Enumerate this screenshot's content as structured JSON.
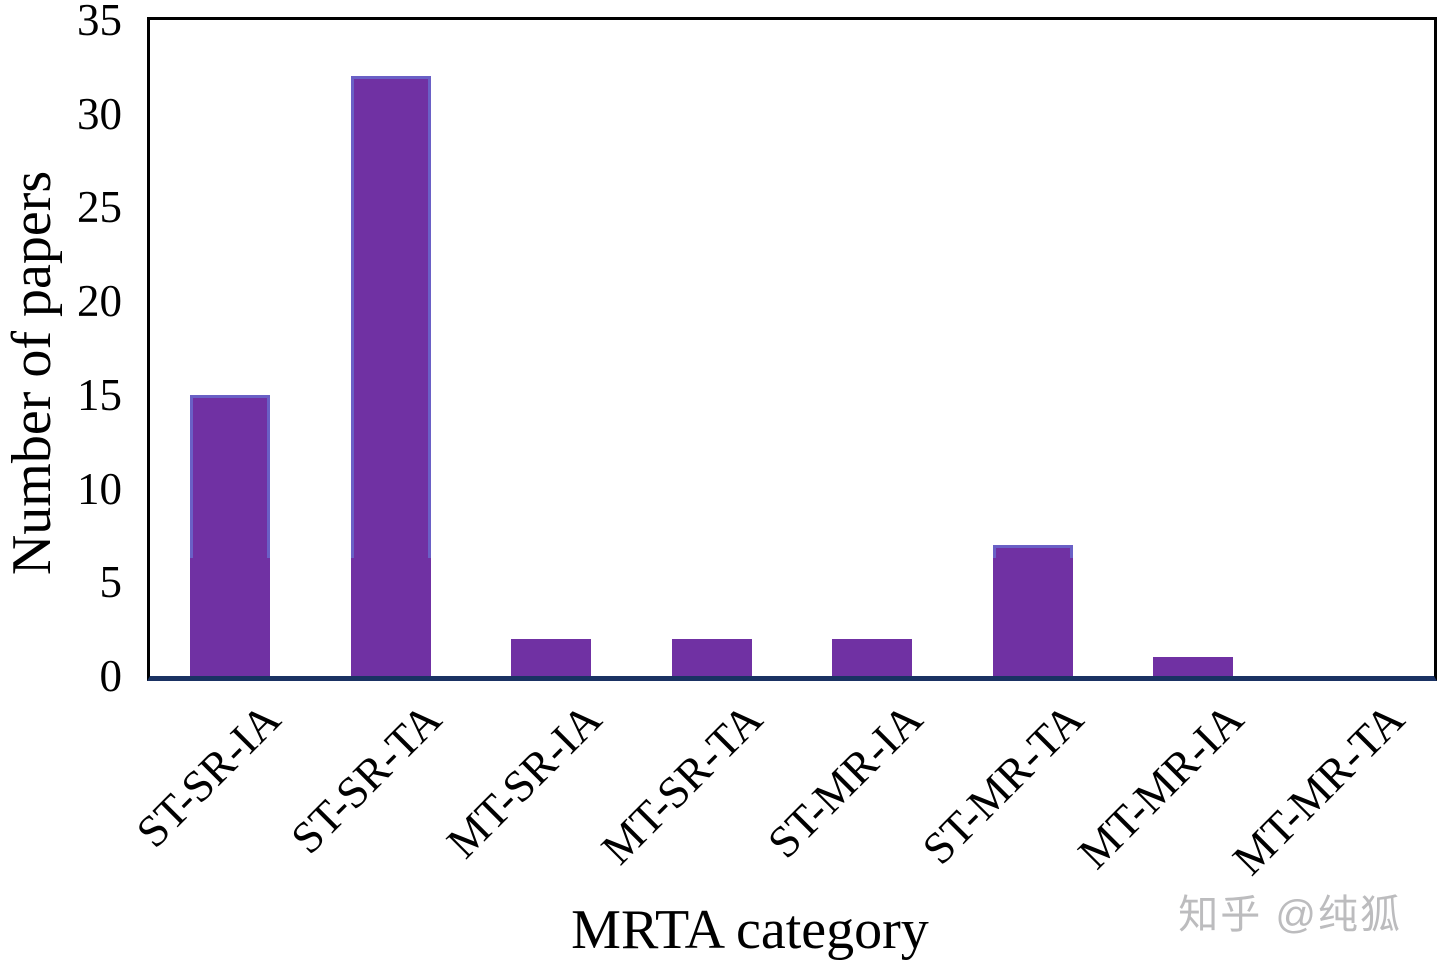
{
  "watermark": {
    "text": "知乎 @纯狐",
    "color": "#bcbcbe"
  },
  "chart_data": {
    "type": "bar",
    "title": "",
    "xlabel": "MRTA category",
    "ylabel": "Number of papers",
    "categories": [
      "ST-SR-IA",
      "ST-SR-TA",
      "MT-SR-IA",
      "MT-SR-TA",
      "ST-MR-IA",
      "ST-MR-TA",
      "MT-MR-IA",
      "MT-MR-TA"
    ],
    "values": [
      15,
      32,
      2,
      2,
      2,
      7,
      1,
      0
    ],
    "ylim": [
      0,
      35
    ],
    "yticks": [
      0,
      5,
      10,
      15,
      20,
      25,
      30,
      35
    ],
    "grid": false,
    "legend": null,
    "bar_color": "#7031a3",
    "bar_edge_artifact_color": "#6a60c6",
    "bar_edge_artifact_threshold": 6.3,
    "axis_line_color": "#1a3263",
    "frame_color": "#000000"
  }
}
